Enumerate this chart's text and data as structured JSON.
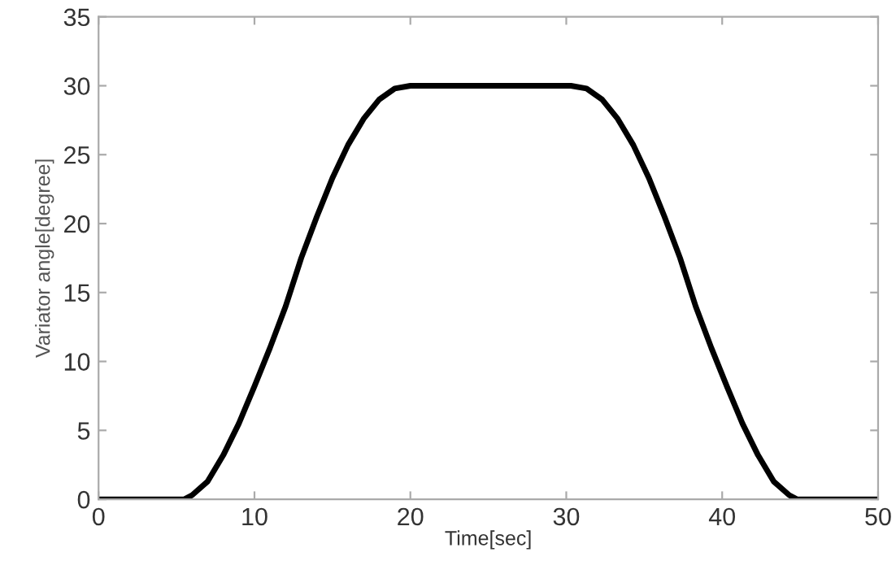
{
  "chart_data": {
    "type": "line",
    "xlabel": "Time[sec]",
    "ylabel": "Variator angle[degree]",
    "x": [
      0,
      5.5,
      6,
      7,
      8,
      9,
      10,
      11,
      12,
      13,
      14,
      15,
      16,
      17,
      18,
      19,
      20,
      30.3,
      31.3,
      32.3,
      33.3,
      34.3,
      35.3,
      36.3,
      37.3,
      38.3,
      39.3,
      40.3,
      41.3,
      42.3,
      43.3,
      44.3,
      44.8,
      50
    ],
    "series": [
      {
        "color": "#000000",
        "values": [
          0,
          0,
          0.3,
          1.3,
          3.2,
          5.5,
          8.2,
          11,
          14,
          17.5,
          20.5,
          23.3,
          25.7,
          27.6,
          29,
          29.8,
          30,
          30,
          29.8,
          29,
          27.6,
          25.7,
          23.3,
          20.5,
          17.5,
          14,
          11,
          8.2,
          5.5,
          3.2,
          1.3,
          0.3,
          0,
          0
        ]
      }
    ],
    "xlim": [
      0,
      50
    ],
    "ylim": [
      0,
      35
    ],
    "xticks": [
      0,
      10,
      20,
      30,
      40,
      50
    ],
    "yticks": [
      0,
      5,
      10,
      15,
      20,
      25,
      30,
      35
    ],
    "grid": false,
    "line_style": "solid",
    "marker": "none"
  }
}
